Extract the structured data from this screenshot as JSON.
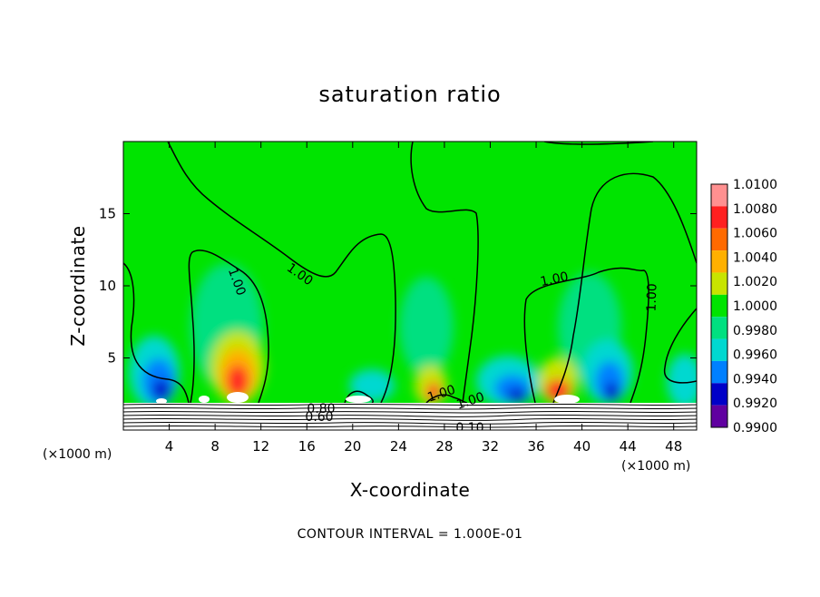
{
  "chart_data": {
    "type": "heatmap",
    "title": "saturation ratio",
    "xlabel": "X-coordinate",
    "ylabel": "Z-coordinate",
    "x_unit": "(×1000 m)",
    "y_unit": "(×1000 m)",
    "xlim": [
      0,
      50
    ],
    "ylim": [
      0,
      20
    ],
    "x_ticks": [
      4,
      8,
      12,
      16,
      20,
      24,
      28,
      32,
      36,
      40,
      44,
      48
    ],
    "y_ticks": [
      5,
      10,
      15
    ],
    "colorbar": {
      "levels": [
        "1.0100",
        "1.0080",
        "1.0060",
        "1.0040",
        "1.0020",
        "1.0000",
        "0.9980",
        "0.9960",
        "0.9940",
        "0.9920",
        "0.9900"
      ],
      "colors": [
        "#ff9090",
        "#ff2020",
        "#ff6a00",
        "#ffb000",
        "#c8e400",
        "#00e400",
        "#00e080",
        "#00d8d0",
        "#0080ff",
        "#0000c8",
        "#6000a0"
      ]
    },
    "contour_labels": [
      "1.00",
      "1.00",
      "1.00",
      "1.00",
      "1.00",
      "1.00",
      "0.80",
      "0.60",
      "0.10"
    ],
    "footnote": "CONTOUR INTERVAL = 1.000E-01"
  }
}
